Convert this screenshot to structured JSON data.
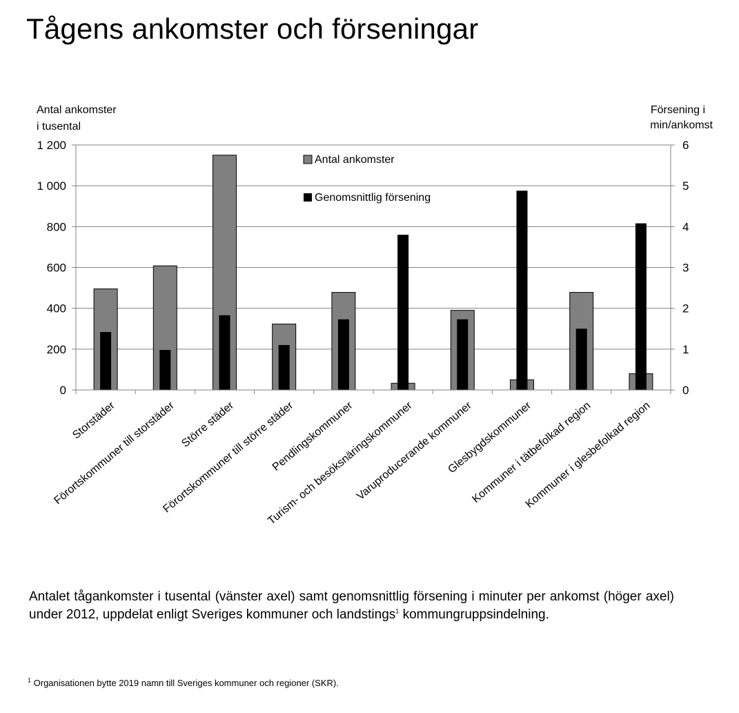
{
  "page": {
    "title": "Tågens ankomster och förseningar",
    "caption_text": "Antalet tågankomster i tusental (vänster axel) samt genomsnittlig försening i minuter per ankomst (höger axel) under 2012, uppdelat enligt Sveriges kommuner och landstings",
    "caption_sup": "1",
    "caption_tail": " kommungruppsindelning.",
    "footnote_sup": "1",
    "footnote_text": " Organisationen bytte 2019 namn till Sveriges kommuner och regioner (SKR)."
  },
  "chart_data": {
    "type": "bar",
    "categories": [
      "Storstäder",
      "Förortskommuner till storstäder",
      "Större städer",
      "Förortskommuner till större städer",
      "Pendlingskommuner",
      "Turism- och besöksnäringskommuner",
      "Varuproducerande kommuner",
      "Glesbygdskommuner",
      "Kommuner i tätbefolkad region",
      "Kommuner i glesbefolkad region"
    ],
    "series": [
      {
        "name": "Antal ankomster",
        "axis": "left",
        "color": "#808080",
        "values": [
          495,
          608,
          1150,
          323,
          478,
          33,
          390,
          50,
          478,
          80
        ]
      },
      {
        "name": "Genomsnittlig försening",
        "axis": "right",
        "color": "#000000",
        "values": [
          1.42,
          0.98,
          1.83,
          1.1,
          1.73,
          3.8,
          1.73,
          4.88,
          1.5,
          4.08
        ]
      }
    ],
    "ylabel_left": [
      "Antal ankomster",
      "i tusental"
    ],
    "ylabel_right": [
      "Försening  i",
      "min/ankomst"
    ],
    "ylim_left": [
      0,
      1200
    ],
    "ylim_right": [
      0,
      6
    ],
    "yticks_left": [
      "0",
      "200",
      "400",
      "600",
      "800",
      "1 000",
      "1 200"
    ],
    "yticks_right": [
      "0",
      "1",
      "2",
      "3",
      "4",
      "5",
      "6"
    ],
    "grid": true,
    "legend_position": "top-center"
  }
}
